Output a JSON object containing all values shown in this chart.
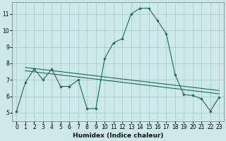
{
  "xlabel": "Humidex (Indice chaleur)",
  "bg_color": "#cce8e8",
  "grid_color": "#aacfcf",
  "line_color": "#1a6b5a",
  "xlim": [
    -0.5,
    23.5
  ],
  "ylim": [
    4.5,
    11.7
  ],
  "yticks": [
    5,
    6,
    7,
    8,
    9,
    10,
    11
  ],
  "xticks": [
    0,
    1,
    2,
    3,
    4,
    5,
    6,
    7,
    8,
    9,
    10,
    11,
    12,
    13,
    14,
    15,
    16,
    17,
    18,
    19,
    20,
    21,
    22,
    23
  ],
  "curve1_x": [
    0,
    1,
    2,
    3,
    4,
    5,
    6,
    7,
    8,
    9,
    10,
    11,
    12,
    13,
    14,
    15,
    16,
    17,
    18,
    19,
    20,
    21,
    22,
    23
  ],
  "curve1_y": [
    5.1,
    6.85,
    7.65,
    7.0,
    7.65,
    6.6,
    6.6,
    7.0,
    5.25,
    5.25,
    8.3,
    9.25,
    9.5,
    11.0,
    11.35,
    11.35,
    10.6,
    9.8,
    7.3,
    6.1,
    6.05,
    5.85,
    5.1,
    5.95
  ],
  "curve2_x": [
    1,
    23
  ],
  "curve2_y": [
    7.75,
    6.35
  ],
  "curve3_x": [
    1,
    23
  ],
  "curve3_y": [
    7.55,
    6.15
  ],
  "xlabel_fontsize": 6.5,
  "tick_fontsize": 5.5
}
